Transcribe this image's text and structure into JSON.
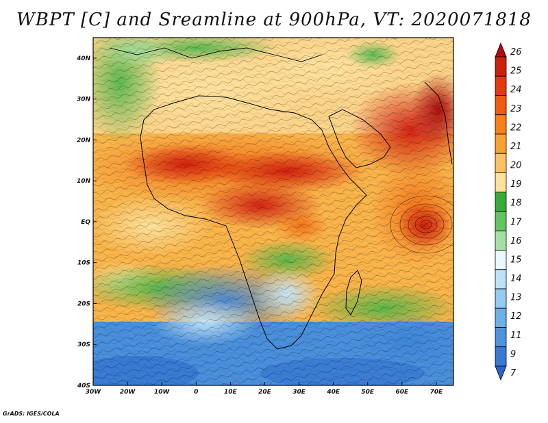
{
  "title": "WBPT [C] and Sreamline at 900hPa, VT: 2020071818",
  "footer": "GrADS: IGES/COLA",
  "map": {
    "lon_range": [
      -30,
      75
    ],
    "lat_range": [
      -40,
      45
    ],
    "lon_ticks": [
      {
        "value": -30,
        "label": "30W"
      },
      {
        "value": -20,
        "label": "20W"
      },
      {
        "value": -10,
        "label": "10W"
      },
      {
        "value": 0,
        "label": "0"
      },
      {
        "value": 10,
        "label": "10E"
      },
      {
        "value": 20,
        "label": "20E"
      },
      {
        "value": 30,
        "label": "30E"
      },
      {
        "value": 40,
        "label": "40E"
      },
      {
        "value": 50,
        "label": "50E"
      },
      {
        "value": 60,
        "label": "60E"
      },
      {
        "value": 70,
        "label": "70E"
      }
    ],
    "lat_ticks": [
      {
        "value": 40,
        "label": "40N"
      },
      {
        "value": 30,
        "label": "30N"
      },
      {
        "value": 20,
        "label": "20N"
      },
      {
        "value": 10,
        "label": "10N"
      },
      {
        "value": 0,
        "label": "EQ"
      },
      {
        "value": -10,
        "label": "10S"
      },
      {
        "value": -20,
        "label": "20S"
      },
      {
        "value": -30,
        "label": "30S"
      },
      {
        "value": -40,
        "label": "40S"
      }
    ]
  },
  "colorbar": {
    "labels": [
      "26",
      "25",
      "24",
      "23",
      "22",
      "21",
      "20",
      "19",
      "18",
      "17",
      "16",
      "15",
      "14",
      "13",
      "12",
      "11",
      "9",
      "7"
    ],
    "colors": [
      "#b40a0a",
      "#cf1f0f",
      "#e33a12",
      "#f05b12",
      "#f7801c",
      "#f9a232",
      "#fbc265",
      "#fde19a",
      "#3aab3a",
      "#63c463",
      "#a6dfa6",
      "#e8f8ff",
      "#bde2f8",
      "#94cbf0",
      "#6db0e6",
      "#4f93dc",
      "#3a79d2",
      "#2a62c8"
    ]
  }
}
